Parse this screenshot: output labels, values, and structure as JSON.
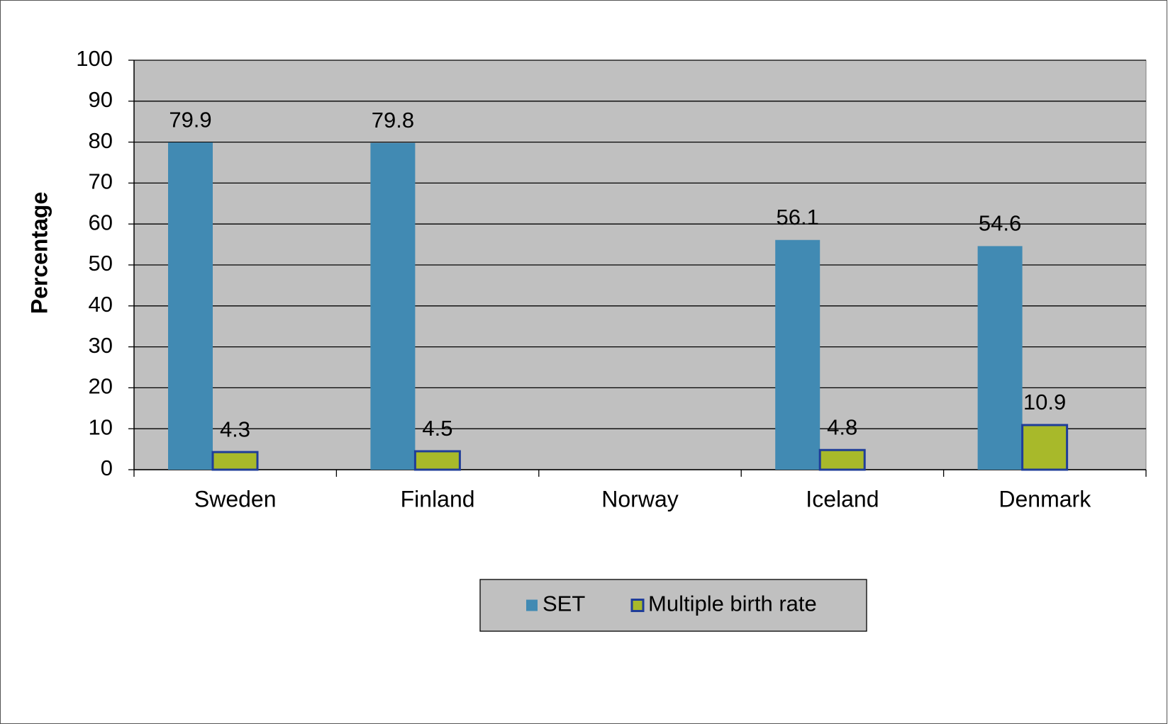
{
  "chart_data": {
    "type": "bar",
    "y_label": "Percentage",
    "categories": [
      "Sweden",
      "Finland",
      "Norway",
      "Iceland",
      "Denmark"
    ],
    "series": [
      {
        "name": "SET",
        "color": "#418ab3",
        "values": [
          79.9,
          79.8,
          null,
          56.1,
          54.6
        ]
      },
      {
        "name": "Multiple birth rate",
        "color": "#a8b92a",
        "border": "#1f3d99",
        "values": [
          4.3,
          4.5,
          null,
          4.8,
          10.9
        ]
      }
    ],
    "ylim": [
      0,
      100
    ],
    "yticks": [
      0,
      10,
      20,
      30,
      40,
      50,
      60,
      70,
      80,
      90,
      100
    ],
    "grid": true,
    "legend": "bottom"
  }
}
